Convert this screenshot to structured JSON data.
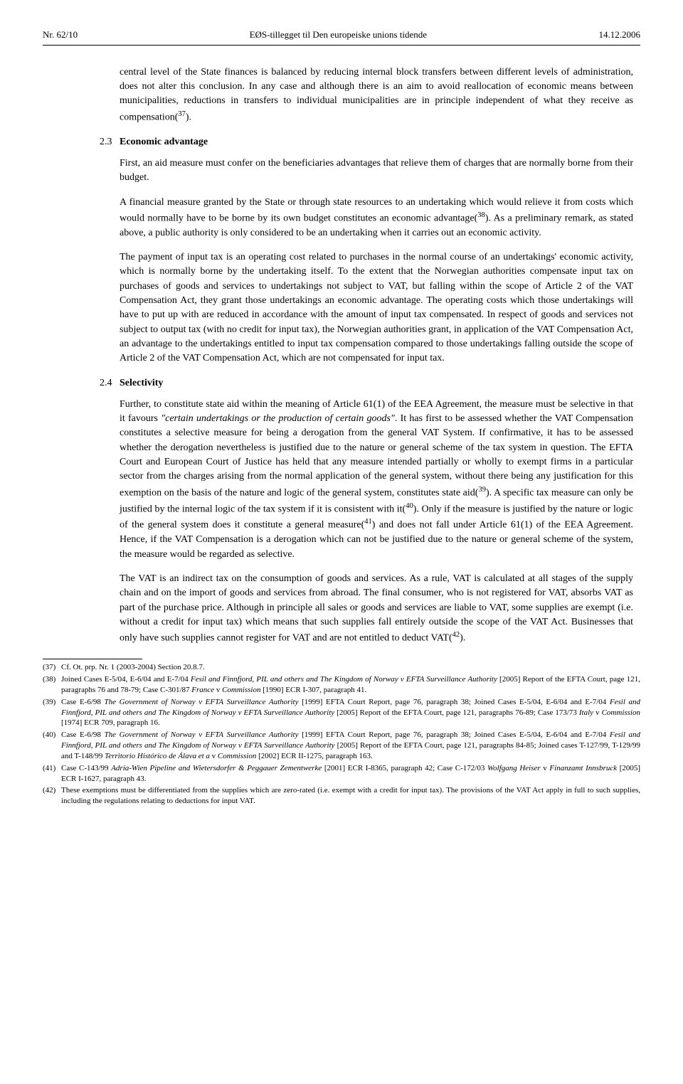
{
  "header": {
    "left": "Nr. 62/10",
    "center": "EØS-tillegget til Den europeiske unions tidende",
    "right": "14.12.2006"
  },
  "p1": "central level of the State finances is balanced by reducing internal block transfers between different levels of administration, does not alter this conclusion. In any case and although there is an aim to avoid reallocation of economic means between municipalities, reductions in transfers to individual municipalities are in principle independent of what they receive as compensation(",
  "p1_sup": "37",
  "p1_tail": ").",
  "s23_num": "2.3",
  "s23_title": "Economic advantage",
  "p2": "First, an aid measure must confer on the beneficiaries advantages that relieve them of charges that are normally borne from their budget.",
  "p3a": "A financial measure granted by the State or through state resources to an undertaking which would relieve it from costs which would normally have to be borne by its own budget constitutes an economic advantage(",
  "p3_sup": "38",
  "p3b": "). As a preliminary remark, as stated above, a public authority is only considered to be an undertaking when it carries out an economic activity.",
  "p4": "The payment of input tax is an operating cost related to purchases in the normal course of an undertakings' economic activity, which is normally borne by the undertaking itself. To the extent that the Norwegian authorities compensate input tax on purchases of goods and services to undertakings not subject to VAT, but falling within the scope of Article 2 of the VAT Compensation Act, they grant those undertakings an economic advantage. The operating costs which those undertakings will have to put up with are reduced in accordance with the amount of input tax compensated. In respect of goods and services not subject to output tax (with no credit for input tax), the Norwegian authorities grant, in application of the VAT Compensation Act, an advantage to the undertakings entitled to input tax compensation compared to those undertakings falling outside the scope of Article 2 of the VAT Compensation Act, which are not compensated for input tax.",
  "s24_num": "2.4",
  "s24_title": "Selectivity",
  "p5a": "Further, to constitute state aid within the meaning of Article 61(1) of the EEA Agreement, the measure must be selective in that it favours ",
  "p5_em": "\"certain undertakings or the production of certain goods\"",
  "p5b": ". It has first to be assessed whether the VAT Compensation constitutes a selective measure for being a derogation from the general VAT System. If confirmative, it has to be assessed whether the derogation nevertheless is justified due to the nature or general scheme of the tax system in question. The EFTA Court and European Court of Justice has held that any measure intended partially or wholly to exempt firms in a particular sector from the charges arising from the normal application of the general system, without there being any justification for this exemption on the basis of the nature and logic of the general system, constitutes state aid(",
  "p5_sup1": "39",
  "p5c": "). A specific tax measure can only be justified by the internal logic of the tax system if it is consistent with it(",
  "p5_sup2": "40",
  "p5d": "). Only if the measure is justified by the nature or logic of the general system does it constitute a general measure(",
  "p5_sup3": "41",
  "p5e": ") and does not fall under Article 61(1) of the EEA Agreement. Hence, if the VAT Compensation is a derogation which can not be justified due to the nature or general scheme of the system, the measure would be regarded as selective.",
  "p6a": "The VAT is an indirect tax on the consumption of goods and services. As a rule, VAT is calculated at all stages of the supply chain and on the import of goods and services from abroad. The final consumer, who is not registered for VAT, absorbs VAT as part of the purchase price. Although in principle all sales or goods and services are liable to VAT, some supplies are exempt (i.e. without a credit for input tax) which means that such supplies fall entirely outside the scope of the VAT Act. Businesses that only have such supplies cannot register for VAT and are not entitled to deduct VAT(",
  "p6_sup": "42",
  "p6b": ").",
  "footnotes": [
    {
      "num": "37",
      "text": "Cf. Ot. prp. Nr. 1 (2003-2004) Section 20.8.7."
    },
    {
      "num": "38",
      "text": "Joined Cases E-5/04, E-6/04 and E-7/04 <em>Fesil and Finnfjord, PIL and others and The Kingdom of Norway v EFTA Surveillance Authority</em> [2005] Report of the EFTA Court, page 121, paragraphs 76 and 78-79; Case C-301/87 <em>France</em> v <em>Commission</em> [1990] ECR I-307, paragraph 41."
    },
    {
      "num": "39",
      "text": "Case E-6/98 <em>The Government of Norway v EFTA Surveillance Authority</em> [1999] EFTA Court Report, page 76, paragraph 38; Joined Cases E-5/04, E-6/04 and E-7/04 <em>Fesil and Finnfjord, PIL and others and The Kingdom of Norway v EFTA Surveillance Authority</em> [2005] Report of the EFTA Court, page 121, paragraphs 76-89; Case 173/73 <em>Italy</em> v <em>Commission</em> [1974] ECR 709, paragraph 16."
    },
    {
      "num": "40",
      "text": "Case E-6/98 <em>The Government of Norway v EFTA Surveillance Authority</em> [1999] EFTA Court Report, page 76, paragraph 38; Joined Cases E-5/04, E-6/04 and E-7/04 <em>Fesil and Finnfjord, PIL and others and The Kingdom of Norway v EFTA Surveillance Authority</em> [2005] Report of the EFTA Court, page 121, paragraphs 84-85; Joined cases T-127/99, T-129/99 and T-148/99 <em>Territorio Histórico de Álava et a</em> v <em>Commission</em> [2002] ECR II-1275, paragraph 163."
    },
    {
      "num": "41",
      "text": "Case C-143/99 <em>Adria-Wien Pipeline and Wietersdorfer & Peggauer Zementwerke</em> [2001] ECR I-8365, paragraph 42; Case C-172/03 <em>Wolfgang Heiser</em> v <em>Finanzamt Innsbruck</em> [2005] ECR I-1627, paragraph 43."
    },
    {
      "num": "42",
      "text": "These exemptions must be differentiated from the supplies which are zero-rated (i.e. exempt with a credit for input tax). The provisions of the VAT Act apply in full to such supplies, including the regulations relating to deductions for input VAT."
    }
  ]
}
